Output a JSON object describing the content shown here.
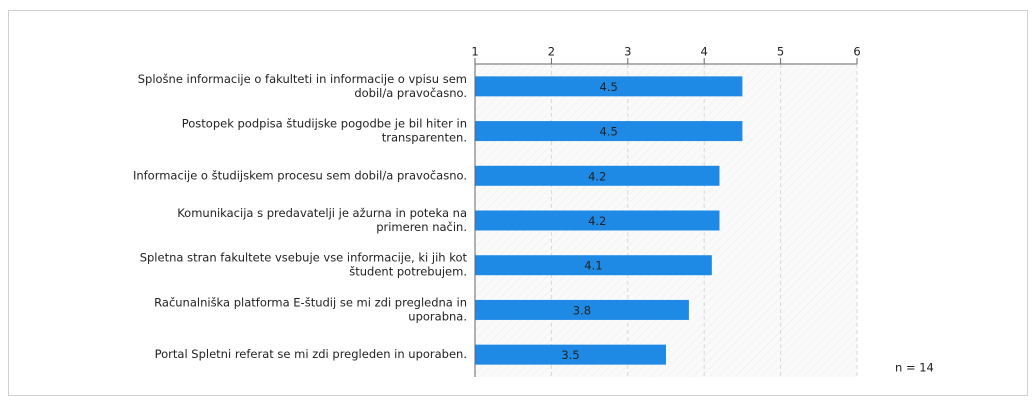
{
  "chart_data": {
    "type": "bar",
    "orientation": "horizontal",
    "categories": [
      [
        "Splošne informacije o fakulteti in informacije o vpisu sem",
        "dobil/a pravočasno."
      ],
      [
        "Postopek podpisa študijske pogodbe je bil hiter in",
        "transparenten."
      ],
      [
        "Informacije o študijskem procesu sem dobil/a pravočasno."
      ],
      [
        "Komunikacija s predavatelji je ažurna in poteka na",
        "primeren način."
      ],
      [
        "Spletna stran fakultete vsebuje vse informacije, ki jih kot",
        "študent potrebujem."
      ],
      [
        "Računalniška platforma E-študij se mi zdi pregledna in",
        "uporabna."
      ],
      [
        "Portal Spletni referat se mi zdi pregleden in uporaben."
      ]
    ],
    "values": [
      4.5,
      4.5,
      4.2,
      4.2,
      4.1,
      3.8,
      3.5
    ],
    "color": "#1f8ae6",
    "xlim": [
      1,
      6
    ],
    "xticks": [
      1,
      2,
      3,
      4,
      5,
      6
    ],
    "grid": true,
    "annotation": "n = 14"
  }
}
